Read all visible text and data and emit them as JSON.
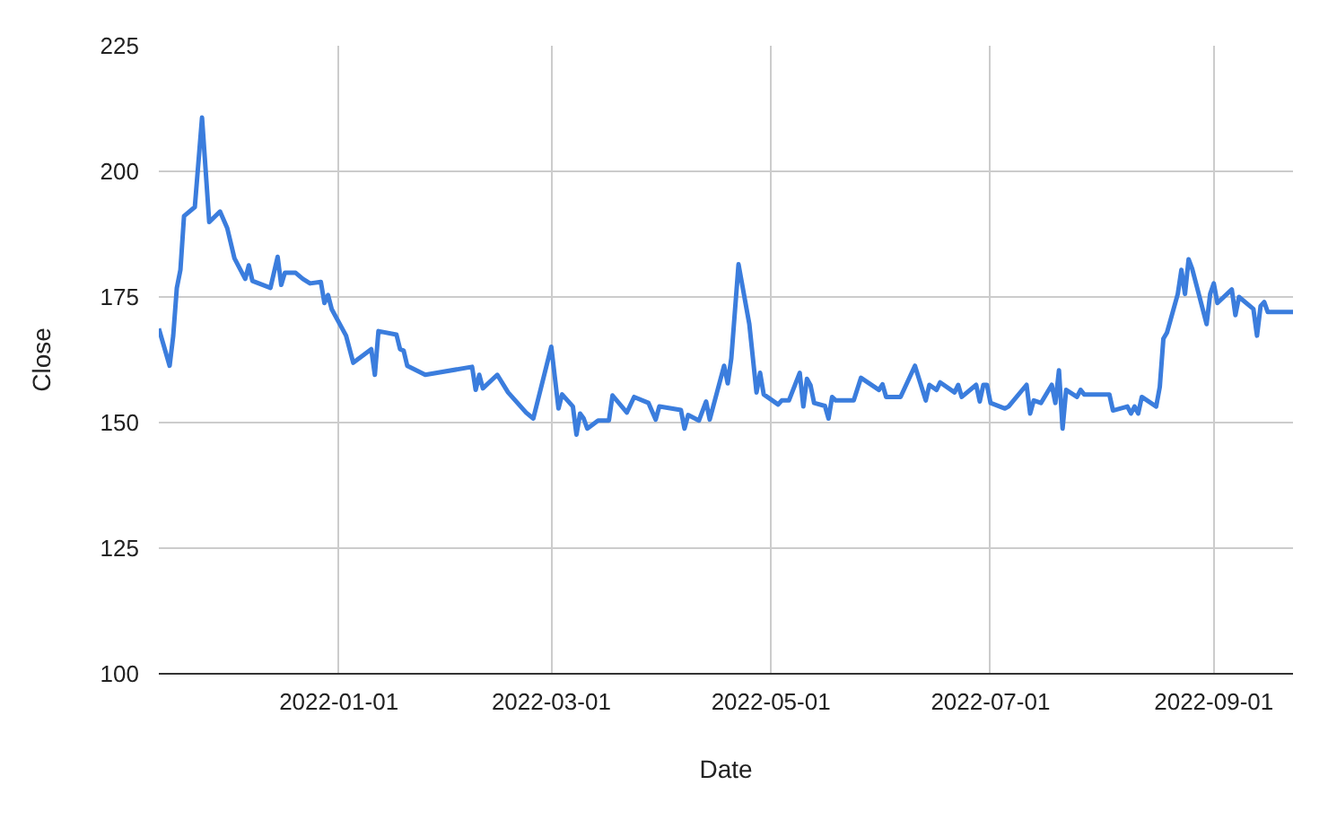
{
  "chart_data": {
    "type": "line",
    "xlabel": "Date",
    "ylabel": "Close",
    "xlim": [
      "2021-11-12",
      "2022-09-23"
    ],
    "xticks": [
      "2022-01-01",
      "2022-03-01",
      "2022-05-01",
      "2022-07-01",
      "2022-09-01"
    ],
    "ylim": [
      100,
      225
    ],
    "yticks": [
      100,
      125,
      150,
      175,
      200,
      225
    ],
    "grid": true,
    "marker": "none",
    "line_style": "solid",
    "x": [
      "2021-11-12",
      "2021-11-15",
      "2021-11-16",
      "2021-11-17",
      "2021-11-18",
      "2021-11-19",
      "2021-11-22",
      "2021-11-24",
      "2021-11-26",
      "2021-11-29",
      "2021-12-01",
      "2021-12-03",
      "2021-12-06",
      "2021-12-07",
      "2021-12-08",
      "2021-12-13",
      "2021-12-15",
      "2021-12-16",
      "2021-12-17",
      "2021-12-20",
      "2021-12-22",
      "2021-12-24",
      "2021-12-27",
      "2021-12-28",
      "2021-12-29",
      "2021-12-30",
      "2022-01-03",
      "2022-01-05",
      "2022-01-10",
      "2022-01-11",
      "2022-01-12",
      "2022-01-17",
      "2022-01-18",
      "2022-01-19",
      "2022-01-20",
      "2022-01-25",
      "2022-02-07",
      "2022-02-08",
      "2022-02-09",
      "2022-02-10",
      "2022-02-14",
      "2022-02-17",
      "2022-02-22",
      "2022-02-24",
      "2022-03-01",
      "2022-03-03",
      "2022-03-04",
      "2022-03-07",
      "2022-03-08",
      "2022-03-09",
      "2022-03-10",
      "2022-03-11",
      "2022-03-14",
      "2022-03-17",
      "2022-03-18",
      "2022-03-22",
      "2022-03-24",
      "2022-03-28",
      "2022-03-30",
      "2022-03-31",
      "2022-04-06",
      "2022-04-07",
      "2022-04-08",
      "2022-04-11",
      "2022-04-13",
      "2022-04-14",
      "2022-04-18",
      "2022-04-19",
      "2022-04-20",
      "2022-04-22",
      "2022-04-25",
      "2022-04-27",
      "2022-04-28",
      "2022-04-29",
      "2022-05-03",
      "2022-05-04",
      "2022-05-06",
      "2022-05-09",
      "2022-05-10",
      "2022-05-11",
      "2022-05-12",
      "2022-05-13",
      "2022-05-16",
      "2022-05-17",
      "2022-05-18",
      "2022-05-19",
      "2022-05-24",
      "2022-05-26",
      "2022-05-31",
      "2022-06-01",
      "2022-06-02",
      "2022-06-06",
      "2022-06-10",
      "2022-06-13",
      "2022-06-14",
      "2022-06-16",
      "2022-06-17",
      "2022-06-21",
      "2022-06-22",
      "2022-06-23",
      "2022-06-27",
      "2022-06-28",
      "2022-06-29",
      "2022-06-30",
      "2022-07-01",
      "2022-07-05",
      "2022-07-06",
      "2022-07-11",
      "2022-07-12",
      "2022-07-13",
      "2022-07-15",
      "2022-07-18",
      "2022-07-19",
      "2022-07-20",
      "2022-07-21",
      "2022-07-22",
      "2022-07-25",
      "2022-07-26",
      "2022-07-27",
      "2022-08-03",
      "2022-08-04",
      "2022-08-08",
      "2022-08-09",
      "2022-08-10",
      "2022-08-11",
      "2022-08-12",
      "2022-08-16",
      "2022-08-17",
      "2022-08-18",
      "2022-08-19",
      "2022-08-22",
      "2022-08-23",
      "2022-08-24",
      "2022-08-25",
      "2022-08-26",
      "2022-08-30",
      "2022-08-31",
      "2022-09-01",
      "2022-09-02",
      "2022-09-06",
      "2022-09-07",
      "2022-09-08",
      "2022-09-12",
      "2022-09-13",
      "2022-09-14",
      "2022-09-15",
      "2022-09-16",
      "2022-09-23"
    ],
    "series": [
      {
        "color": "#3b7ddd",
        "values": [
          168.7,
          161.3,
          167.3,
          176.8,
          180.4,
          191.1,
          192.9,
          210.7,
          189.9,
          192.0,
          188.7,
          182.7,
          178.6,
          181.3,
          178.2,
          176.8,
          183.0,
          177.4,
          179.8,
          179.8,
          178.6,
          177.7,
          178.0,
          173.8,
          175.4,
          172.6,
          167.3,
          161.9,
          164.6,
          159.5,
          168.2,
          167.5,
          164.6,
          164.3,
          161.3,
          159.5,
          161.1,
          156.5,
          159.5,
          156.8,
          159.5,
          156.0,
          152.0,
          150.8,
          165.1,
          152.8,
          155.6,
          153.2,
          147.6,
          151.8,
          150.8,
          148.8,
          150.4,
          150.4,
          155.4,
          152.0,
          155.1,
          153.9,
          150.6,
          153.2,
          152.5,
          148.8,
          151.5,
          150.4,
          154.2,
          150.6,
          161.3,
          157.8,
          162.8,
          181.5,
          169.6,
          156.0,
          159.9,
          155.6,
          153.6,
          154.4,
          154.4,
          159.9,
          153.2,
          158.7,
          157.4,
          153.9,
          153.3,
          150.8,
          155.1,
          154.4,
          154.4,
          158.9,
          156.5,
          157.6,
          155.1,
          155.1,
          161.3,
          154.4,
          157.5,
          156.5,
          158.0,
          156.0,
          157.5,
          155.1,
          157.5,
          154.2,
          157.5,
          157.5,
          153.9,
          152.8,
          153.2,
          157.5,
          151.8,
          154.4,
          153.9,
          157.5,
          153.9,
          160.4,
          148.8,
          156.5,
          155.1,
          156.5,
          155.6,
          155.6,
          152.4,
          153.2,
          151.8,
          153.2,
          151.8,
          155.1,
          153.2,
          157.1,
          166.7,
          167.9,
          175.6,
          180.4,
          175.6,
          182.5,
          180.6,
          169.6,
          175.6,
          177.7,
          173.8,
          176.5,
          171.4,
          175.0,
          172.6,
          167.3,
          173.2,
          174.0,
          172.0,
          172.0
        ]
      }
    ]
  }
}
